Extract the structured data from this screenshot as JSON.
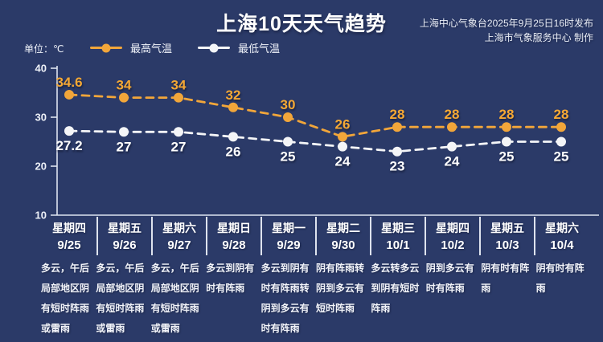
{
  "header": {
    "title": "上海10天天气趋势",
    "source_line1": "上海中心气象台2025年9月25日16时发布",
    "source_line2": "上海市气象服务中心 制作"
  },
  "unit_label": "单位：℃",
  "legend": [
    {
      "label": "最高气温",
      "color": "#f2a63a"
    },
    {
      "label": "最低气温",
      "color": "#f4f5f7"
    }
  ],
  "colors": {
    "background": "#2b3a68",
    "high_series": "#f2a63a",
    "high_label": "#f5a834",
    "low_series": "#f4f5f7",
    "low_label": "#ffffff",
    "axis_line": "#dde3f0"
  },
  "chart_data": {
    "type": "line",
    "title": "上海10天天气趋势",
    "unit": "℃",
    "line_style": "dashed",
    "grid": false,
    "legend_position": "top-left",
    "ylim": [
      10,
      40
    ],
    "yticks": [
      40,
      30,
      20,
      10
    ],
    "categories": [
      "9/25",
      "9/26",
      "9/27",
      "9/28",
      "9/29",
      "9/30",
      "10/1",
      "10/2",
      "10/3",
      "10/4"
    ],
    "series": [
      {
        "name": "最高气温",
        "color": "#f2a63a",
        "values": [
          34.6,
          34,
          34,
          32,
          30,
          26,
          28,
          28,
          28,
          28
        ]
      },
      {
        "name": "最低气温",
        "color": "#f4f5f7",
        "values": [
          27.2,
          27,
          27,
          26,
          25,
          24,
          23,
          24,
          25,
          25
        ]
      }
    ]
  },
  "days": [
    {
      "weekday": "星期四",
      "date": "9/25",
      "weather": "多云，午后局部地区阴有短时阵雨或雷雨"
    },
    {
      "weekday": "星期五",
      "date": "9/26",
      "weather": "多云，午后局部地区阴有短时阵雨或雷雨"
    },
    {
      "weekday": "星期六",
      "date": "9/27",
      "weather": "多云，午后局部地区阴有短时阵雨或雷雨"
    },
    {
      "weekday": "星期日",
      "date": "9/28",
      "weather": "多云到阴有时有阵雨"
    },
    {
      "weekday": "星期一",
      "date": "9/29",
      "weather": "多云到阴有时有阵雨转阴到多云有时有阵雨"
    },
    {
      "weekday": "星期二",
      "date": "9/30",
      "weather": "阴有阵雨转阴到多云有短时阵雨"
    },
    {
      "weekday": "星期三",
      "date": "10/1",
      "weather": "多云转多云到阴有短时阵雨"
    },
    {
      "weekday": "星期四",
      "date": "10/2",
      "weather": "阴到多云有时有阵雨"
    },
    {
      "weekday": "星期五",
      "date": "10/3",
      "weather": "阴有时有阵雨"
    },
    {
      "weekday": "星期六",
      "date": "10/4",
      "weather": "阴有时有阵雨"
    }
  ]
}
